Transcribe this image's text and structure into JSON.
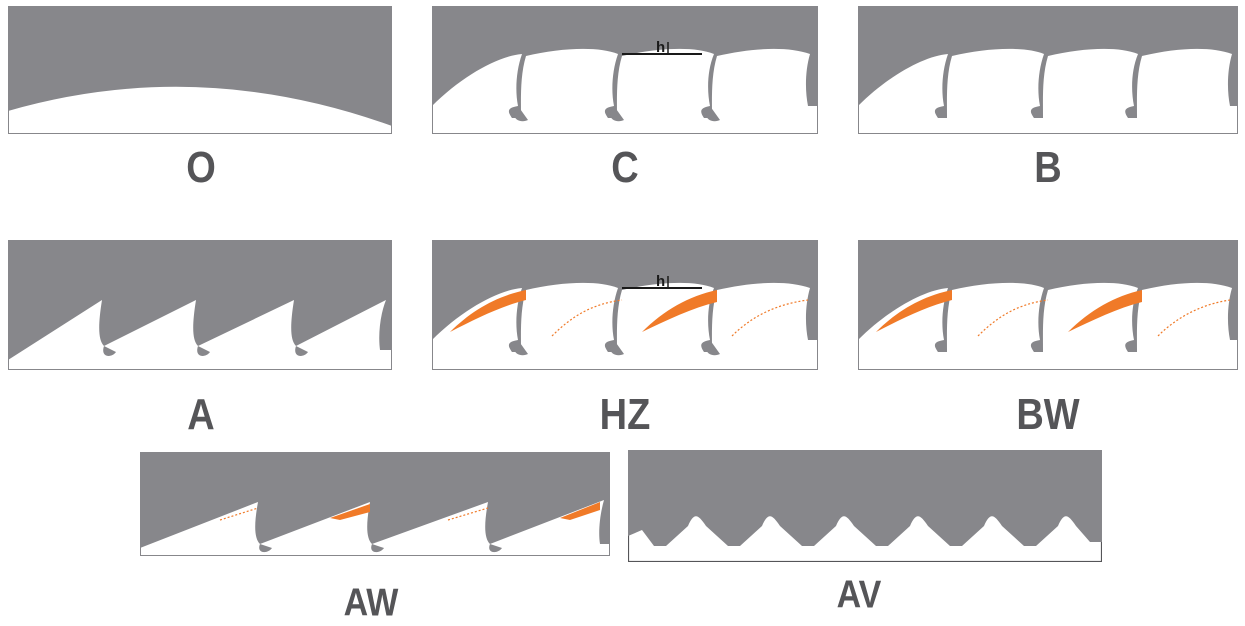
{
  "colors": {
    "blade": "#87878b",
    "orange": "#f07a28",
    "label": "#555558",
    "marker": "#1a1a1a"
  },
  "labels": {
    "O": "O",
    "C": "C",
    "B": "B",
    "A": "A",
    "HZ": "HZ",
    "BW": "BW",
    "AW": "AW",
    "AV": "AV"
  },
  "dimension_label": "h",
  "panels": [
    {
      "id": "O",
      "profile": "straight"
    },
    {
      "id": "C",
      "profile": "hook-tooth",
      "dimension": "h"
    },
    {
      "id": "B",
      "profile": "hook-tooth"
    },
    {
      "id": "A",
      "profile": "regular-tooth"
    },
    {
      "id": "HZ",
      "profile": "hook-tooth-coated",
      "dimension": "h"
    },
    {
      "id": "BW",
      "profile": "hook-tooth-coated"
    },
    {
      "id": "AW",
      "profile": "regular-tooth-coated"
    },
    {
      "id": "AV",
      "profile": "triangular-tooth"
    }
  ]
}
